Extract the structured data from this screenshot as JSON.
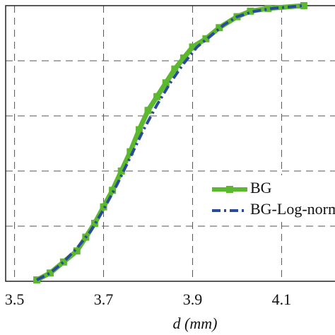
{
  "chart_data": {
    "type": "line",
    "xlabel": "d (mm)",
    "xlim": [
      3.48,
      4.22
    ],
    "xticks": [
      3.5,
      3.7,
      3.9,
      4.1
    ],
    "ylim": [
      0,
      1
    ],
    "yticks": [
      0,
      0.2,
      0.4,
      0.6,
      0.8,
      1
    ],
    "grid": true,
    "legend": "right",
    "series": [
      {
        "name": "BG",
        "color": "#5cb82e",
        "marker": "square",
        "x": [
          3.55,
          3.58,
          3.61,
          3.64,
          3.66,
          3.68,
          3.7,
          3.72,
          3.74,
          3.76,
          3.78,
          3.8,
          3.82,
          3.84,
          3.86,
          3.88,
          3.9,
          3.93,
          3.96,
          4.0,
          4.03,
          4.07,
          4.15
        ],
        "values": [
          0.005,
          0.03,
          0.07,
          0.11,
          0.16,
          0.21,
          0.27,
          0.33,
          0.4,
          0.47,
          0.55,
          0.62,
          0.67,
          0.72,
          0.77,
          0.81,
          0.85,
          0.88,
          0.92,
          0.96,
          0.98,
          0.99,
          1.0
        ]
      },
      {
        "name": "BG-Log-normal",
        "color": "#2c4a9c",
        "dash": "dashdot",
        "x": [
          3.55,
          3.58,
          3.61,
          3.64,
          3.67,
          3.7,
          3.73,
          3.76,
          3.79,
          3.82,
          3.85,
          3.88,
          3.91,
          3.94,
          3.97,
          4.0,
          4.04,
          4.08,
          4.15
        ],
        "values": [
          0.005,
          0.03,
          0.07,
          0.12,
          0.18,
          0.26,
          0.35,
          0.45,
          0.55,
          0.64,
          0.72,
          0.79,
          0.85,
          0.89,
          0.93,
          0.96,
          0.98,
          0.99,
          1.0
        ]
      }
    ]
  }
}
